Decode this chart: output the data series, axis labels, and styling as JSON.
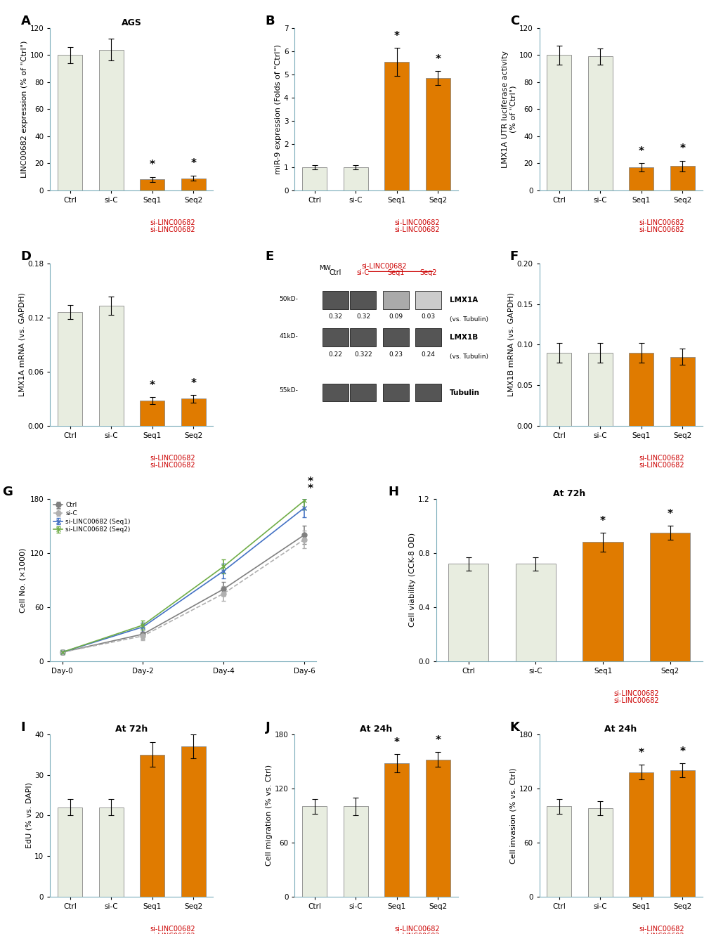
{
  "panel_A": {
    "title": "AGS",
    "ylabel": "LINC00682 expression (% of \"Ctrl\")",
    "categories": [
      "Ctrl",
      "si-C",
      "Seq1",
      "Seq2"
    ],
    "values": [
      100,
      104,
      8,
      9
    ],
    "errors": [
      6,
      8,
      2,
      2
    ],
    "colors": [
      "#e8ede0",
      "#e8ede0",
      "#e07b00",
      "#e07b00"
    ],
    "sig": [
      false,
      false,
      true,
      true
    ],
    "ylim": [
      0,
      120
    ],
    "yticks": [
      0,
      20,
      40,
      60,
      80,
      100,
      120
    ],
    "xlabel_color": [
      "black",
      "#cc0000",
      "#cc0000",
      "#cc0000"
    ],
    "xlabel_label": "si-LINC00682"
  },
  "panel_B": {
    "title": "",
    "ylabel": "miR-9 expression (Folds of \"Ctrl\")",
    "categories": [
      "Ctrl",
      "si-C",
      "Seq1",
      "Seq2"
    ],
    "values": [
      1.0,
      1.0,
      5.55,
      4.85
    ],
    "errors": [
      0.1,
      0.1,
      0.6,
      0.3
    ],
    "colors": [
      "#e8ede0",
      "#e8ede0",
      "#e07b00",
      "#e07b00"
    ],
    "sig": [
      false,
      false,
      true,
      true
    ],
    "ylim": [
      0,
      7
    ],
    "yticks": [
      0,
      1,
      2,
      3,
      4,
      5,
      6,
      7
    ],
    "xlabel_label": "si-LINC00682"
  },
  "panel_C": {
    "title": "",
    "ylabel": "LMX1A UTR luciferase activity\n(% of \"Ctrl\")",
    "categories": [
      "Ctrl",
      "si-C",
      "Seq1",
      "Seq2"
    ],
    "values": [
      100,
      99,
      17,
      18
    ],
    "errors": [
      7,
      6,
      3,
      4
    ],
    "colors": [
      "#e8ede0",
      "#e8ede0",
      "#e07b00",
      "#e07b00"
    ],
    "sig": [
      false,
      false,
      true,
      true
    ],
    "ylim": [
      0,
      120
    ],
    "yticks": [
      0,
      20,
      40,
      60,
      80,
      100,
      120
    ],
    "xlabel_label": "si-LINC00682"
  },
  "panel_D": {
    "title": "",
    "ylabel": "LMX1A mRNA (vs. GAPDH)",
    "categories": [
      "Ctrl",
      "si-C",
      "Seq1",
      "Seq2"
    ],
    "values": [
      0.126,
      0.133,
      0.028,
      0.03
    ],
    "errors": [
      0.008,
      0.01,
      0.004,
      0.004
    ],
    "colors": [
      "#e8ede0",
      "#e8ede0",
      "#e07b00",
      "#e07b00"
    ],
    "sig": [
      false,
      false,
      true,
      true
    ],
    "ylim": [
      0,
      0.18
    ],
    "yticks": [
      0,
      0.06,
      0.12,
      0.18
    ],
    "xlabel_label": "si-LINC00682"
  },
  "panel_F": {
    "title": "",
    "ylabel": "LMX1B mRNA (vs. GAPDH)",
    "categories": [
      "Ctrl",
      "si-C",
      "Seq1",
      "Seq2"
    ],
    "values": [
      0.09,
      0.09,
      0.09,
      0.085
    ],
    "errors": [
      0.012,
      0.012,
      0.012,
      0.01
    ],
    "colors": [
      "#e8ede0",
      "#e8ede0",
      "#e07b00",
      "#e07b00"
    ],
    "sig": [
      false,
      false,
      false,
      false
    ],
    "ylim": [
      0,
      0.2
    ],
    "yticks": [
      0,
      0.05,
      0.1,
      0.15,
      0.2
    ],
    "xlabel_label": "si-LINC00682"
  },
  "panel_G": {
    "title": "",
    "ylabel": "Cell No. (×1000)",
    "xlabel": "",
    "xticklabels": [
      "Day-0",
      "Day-2",
      "Day-4",
      "Day-6"
    ],
    "xvalues": [
      0,
      2,
      4,
      6
    ],
    "series": [
      {
        "label": "Ctrl",
        "values": [
          10,
          30,
          80,
          140
        ],
        "color": "#808080",
        "linestyle": "-",
        "marker": "o"
      },
      {
        "label": "si-C",
        "values": [
          10,
          28,
          75,
          135
        ],
        "color": "#b0b0b0",
        "linestyle": "--",
        "marker": "o"
      },
      {
        "label": "si-LINC00682 (Seq1)",
        "values": [
          10,
          38,
          100,
          170
        ],
        "color": "#4472c4",
        "linestyle": "-",
        "marker": "x"
      },
      {
        "label": "si-LINC00682 (Seq2)",
        "values": [
          10,
          40,
          105,
          178
        ],
        "color": "#70ad47",
        "linestyle": "-",
        "marker": "x"
      }
    ],
    "errors": [
      [
        2,
        5,
        8,
        10
      ],
      [
        2,
        5,
        8,
        10
      ],
      [
        2,
        5,
        8,
        10
      ],
      [
        2,
        5,
        8,
        10
      ]
    ],
    "ylim": [
      0,
      180
    ],
    "yticks": [
      0,
      60,
      120,
      180
    ],
    "sig_day6": [
      false,
      false,
      true,
      true
    ]
  },
  "panel_H": {
    "title": "At 72h",
    "ylabel": "Cell viability (CCK-8 OD)",
    "categories": [
      "Ctrl",
      "si-C",
      "Seq1",
      "Seq2"
    ],
    "values": [
      0.72,
      0.72,
      0.88,
      0.95
    ],
    "errors": [
      0.05,
      0.05,
      0.07,
      0.05
    ],
    "colors": [
      "#e8ede0",
      "#e8ede0",
      "#e07b00",
      "#e07b00"
    ],
    "sig": [
      false,
      false,
      true,
      true
    ],
    "ylim": [
      0,
      1.2
    ],
    "yticks": [
      0,
      0.4,
      0.8,
      1.2
    ],
    "xlabel_label": "si-LINC00682"
  },
  "panel_I": {
    "title": "At 72h",
    "ylabel": "EdU (% vs. DAPI)",
    "categories": [
      "Ctrl",
      "si-C",
      "Seq1",
      "Seq2"
    ],
    "values": [
      22,
      22,
      35,
      37
    ],
    "errors": [
      2,
      2,
      3,
      3
    ],
    "colors": [
      "#e8ede0",
      "#e8ede0",
      "#e07b00",
      "#e07b00"
    ],
    "sig": [
      false,
      false,
      false,
      false
    ],
    "ylim": [
      0,
      40
    ],
    "yticks": [
      0,
      10,
      20,
      30,
      40
    ],
    "xlabel_label": "si-LINC00682"
  },
  "panel_J": {
    "title": "At 24h",
    "ylabel": "Cell migration (% vs. Ctrl)",
    "categories": [
      "Ctrl",
      "si-C",
      "Seq1",
      "Seq2"
    ],
    "values": [
      100,
      100,
      148,
      152
    ],
    "errors": [
      8,
      10,
      10,
      8
    ],
    "colors": [
      "#e8ede0",
      "#e8ede0",
      "#e07b00",
      "#e07b00"
    ],
    "sig": [
      false,
      false,
      true,
      true
    ],
    "ylim": [
      0,
      180
    ],
    "yticks": [
      0,
      60,
      120,
      180
    ],
    "xlabel_label": "si-LINC00682"
  },
  "panel_K": {
    "title": "At 24h",
    "ylabel": "Cell invasion (% vs. Ctrl)",
    "categories": [
      "Ctrl",
      "si-C",
      "Seq1",
      "Seq2"
    ],
    "values": [
      100,
      98,
      138,
      140
    ],
    "errors": [
      8,
      8,
      8,
      8
    ],
    "colors": [
      "#e8ede0",
      "#e8ede0",
      "#e07b00",
      "#e07b00"
    ],
    "sig": [
      false,
      false,
      true,
      true
    ],
    "ylim": [
      0,
      180
    ],
    "yticks": [
      0,
      60,
      120,
      180
    ],
    "xlabel_label": "si-LINC00682"
  },
  "western_blot": {
    "label": "E",
    "proteins": [
      "LMX1A",
      "LMX1B",
      "Tubulin"
    ],
    "mw": [
      "50kD-",
      "41kD-",
      "55kD-"
    ],
    "conditions": [
      "Ctrl",
      "si-C",
      "Seq1",
      "Seq2"
    ],
    "lmx1a_values": [
      "0.32",
      "0.32",
      "0.09",
      "0.03"
    ],
    "lmx1b_values": [
      "0.22",
      "0.322",
      "0.23",
      "0.24"
    ],
    "lmx1a_note": "(vs. Tubulin)",
    "lmx1b_note": "(vs. Tubulin)"
  },
  "bar_color_ctrl": "#d6dfc8",
  "bar_color_sic": "#d6dfc8",
  "bar_color_seq": "#e07b00",
  "label_color_red": "#cc0000",
  "label_color_black": "#000000",
  "axis_color": "#7aacba"
}
